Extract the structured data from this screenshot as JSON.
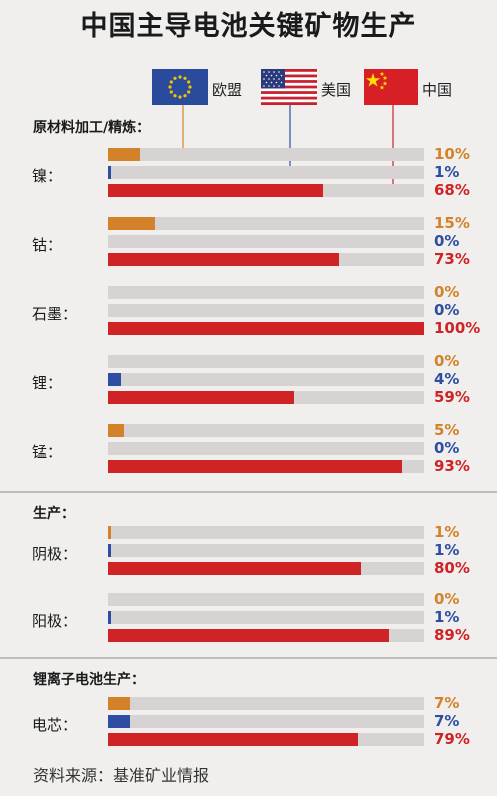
{
  "title": "中国主导电池关键矿物生产",
  "legend": [
    {
      "key": "eu",
      "label": "欧盟",
      "color": "#d4822a"
    },
    {
      "key": "us",
      "label": "美国",
      "color": "#2d4ea3"
    },
    {
      "key": "cn",
      "label": "中国",
      "color": "#cf2326"
    }
  ],
  "source": "资料来源：基准矿业情报",
  "chart_data": {
    "type": "bar",
    "series": [
      {
        "name": "欧盟",
        "color": "#d4822a"
      },
      {
        "name": "美国",
        "color": "#2d4ea3"
      },
      {
        "name": "中国",
        "color": "#cf2326"
      }
    ],
    "sections": [
      {
        "title": "原材料加工/精炼：",
        "groups": [
          {
            "name": "镍：",
            "values": [
              10,
              1,
              68
            ],
            "labels": [
              "10%",
              "1%",
              "68%"
            ]
          },
          {
            "name": "钴：",
            "values": [
              15,
              0,
              73
            ],
            "labels": [
              "15%",
              "0%",
              "73%"
            ]
          },
          {
            "name": "石墨：",
            "values": [
              0,
              0,
              100
            ],
            "labels": [
              "0%",
              "0%",
              "100%"
            ]
          },
          {
            "name": "锂：",
            "values": [
              0,
              4,
              59
            ],
            "labels": [
              "0%",
              "4%",
              "59%"
            ]
          },
          {
            "name": "锰：",
            "values": [
              5,
              0,
              93
            ],
            "labels": [
              "5%",
              "0%",
              "93%"
            ]
          }
        ]
      },
      {
        "title": "生产：",
        "groups": [
          {
            "name": "阴极：",
            "values": [
              1,
              1,
              80
            ],
            "labels": [
              "1%",
              "1%",
              "80%"
            ]
          },
          {
            "name": "阳极：",
            "values": [
              0,
              1,
              89
            ],
            "labels": [
              "0%",
              "1%",
              "89%"
            ]
          }
        ]
      },
      {
        "title": "锂离子电池生产：",
        "groups": [
          {
            "name": "电芯：",
            "values": [
              7,
              7,
              79
            ],
            "labels": [
              "7%",
              "7%",
              "79%"
            ]
          }
        ]
      }
    ]
  }
}
